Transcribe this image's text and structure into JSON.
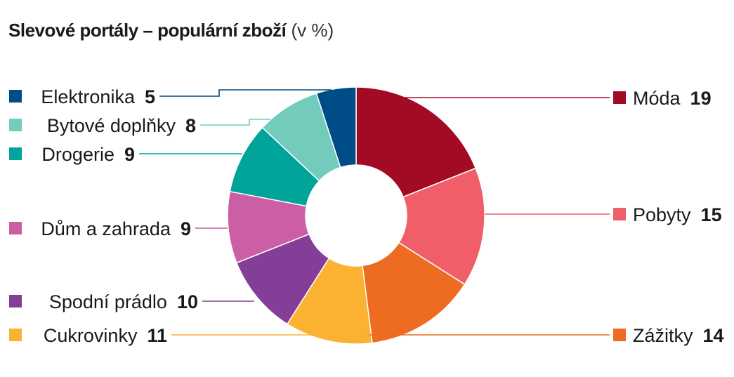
{
  "title": {
    "main": "Slevové portály – populární zboží",
    "unit": "(v %)"
  },
  "chart_data": {
    "type": "pie",
    "donut": true,
    "title": "Slevové portály – populární zboží (v %)",
    "slices": [
      {
        "label": "Móda",
        "value": 19,
        "color": "#a30a24",
        "side": "right"
      },
      {
        "label": "Pobyty",
        "value": 15,
        "color": "#ef5e69",
        "side": "right"
      },
      {
        "label": "Zážitky",
        "value": 14,
        "color": "#ee6b22",
        "side": "right"
      },
      {
        "label": "Cukrovinky",
        "value": 11,
        "color": "#fbb233",
        "side": "left"
      },
      {
        "label": "Spodní prádlo",
        "value": 10,
        "color": "#853e97",
        "side": "left"
      },
      {
        "label": "Dům a zahrada",
        "value": 9,
        "color": "#cc5ea6",
        "side": "left"
      },
      {
        "label": "Drogerie",
        "value": 9,
        "color": "#00a49a",
        "side": "left"
      },
      {
        "label": "Bytové doplňky",
        "value": 8,
        "color": "#72cbbb",
        "side": "left"
      },
      {
        "label": "Elektronika",
        "value": 5,
        "color": "#004c86",
        "side": "left"
      }
    ]
  }
}
